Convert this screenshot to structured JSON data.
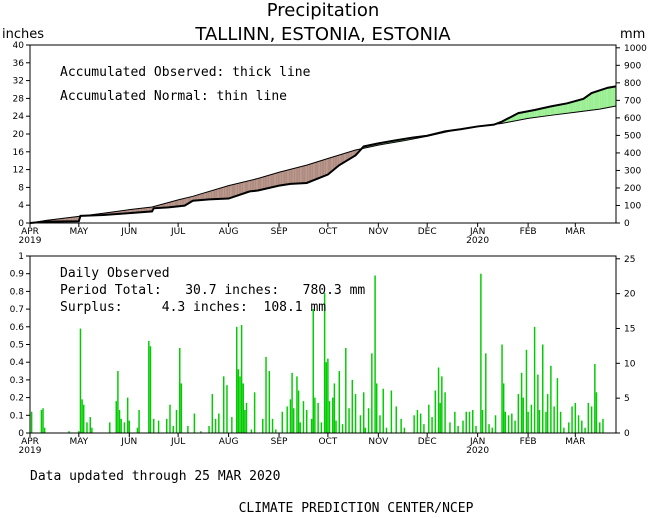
{
  "header": {
    "title": "Precipitation",
    "subtitle": "TALLINN, ESTONIA, ESTONIA",
    "left_unit": "inches",
    "right_unit": "mm"
  },
  "top_annotations": {
    "line1": "Accumulated Observed: thick line",
    "line2": "Accumulated Normal: thin line"
  },
  "bottom_annotations": {
    "line1": "Daily Observed",
    "line2": "Period Total:   30.7 inches:   780.3 mm",
    "line3": "Surplus:     4.3 inches:  108.1 mm"
  },
  "footer": {
    "updated": "Data updated through 25 MAR 2020",
    "credit": "CLIMATE PREDICTION CENTER/NCEP"
  },
  "colors": {
    "deficit_fill": "#b08c80",
    "surplus_fill": "#98ee90",
    "bar": "#00cc00",
    "line": "#000000"
  },
  "chart_data": [
    {
      "type": "area",
      "x_unit": "day since 1 APR 2019",
      "x_tick_labels": [
        {
          "day": 0,
          "label": "APR",
          "year": "2019"
        },
        {
          "day": 30,
          "label": "MAY"
        },
        {
          "day": 61,
          "label": "JUN"
        },
        {
          "day": 91,
          "label": "JUL"
        },
        {
          "day": 122,
          "label": "AUG"
        },
        {
          "day": 153,
          "label": "SEP"
        },
        {
          "day": 183,
          "label": "OCT"
        },
        {
          "day": 214,
          "label": "NOV"
        },
        {
          "day": 244,
          "label": "DEC"
        },
        {
          "day": 275,
          "label": "JAN",
          "year": "2020"
        },
        {
          "day": 306,
          "label": "FEB"
        },
        {
          "day": 335,
          "label": "MAR"
        }
      ],
      "xlim": [
        0,
        360
      ],
      "ylim": [
        0,
        40
      ],
      "y_ticks": [
        0,
        4,
        8,
        12,
        16,
        20,
        24,
        28,
        32,
        36,
        40
      ],
      "y2_ticks_mm": [
        0,
        100,
        200,
        300,
        400,
        500,
        600,
        700,
        800,
        900,
        1000
      ],
      "series": [
        {
          "name": "Accumulated Observed",
          "x": [
            0,
            10,
            30,
            31,
            45,
            60,
            75,
            76,
            85,
            95,
            100,
            110,
            122,
            135,
            140,
            153,
            160,
            170,
            183,
            190,
            200,
            205,
            214,
            225,
            235,
            244,
            255,
            265,
            275,
            285,
            290,
            300,
            310,
            320,
            330,
            340,
            345,
            355,
            360
          ],
          "y": [
            0.0,
            0.3,
            0.4,
            1.6,
            1.8,
            2.2,
            2.6,
            3.3,
            3.5,
            3.9,
            5.0,
            5.3,
            5.5,
            7.1,
            7.3,
            8.4,
            8.8,
            9.0,
            10.9,
            13.0,
            15.2,
            17.2,
            17.9,
            18.6,
            19.2,
            19.6,
            20.6,
            21.1,
            21.7,
            22.1,
            22.8,
            24.7,
            25.4,
            26.2,
            26.9,
            27.9,
            29.2,
            30.4,
            30.7
          ]
        },
        {
          "name": "Accumulated Normal",
          "x": [
            0,
            10,
            30,
            45,
            61,
            75,
            91,
            100,
            122,
            140,
            153,
            170,
            183,
            200,
            214,
            230,
            244,
            260,
            275,
            290,
            306,
            320,
            335,
            350,
            360
          ],
          "y": [
            0.0,
            0.6,
            1.5,
            2.2,
            3.0,
            3.6,
            5.2,
            6.0,
            8.4,
            10.0,
            11.4,
            13.0,
            14.5,
            16.4,
            17.5,
            18.5,
            19.5,
            20.8,
            21.7,
            22.4,
            23.5,
            24.2,
            24.9,
            25.6,
            26.3
          ]
        }
      ]
    },
    {
      "type": "bar",
      "x_unit": "day since 1 APR 2019",
      "xlim": [
        0,
        360
      ],
      "ylim": [
        0,
        1
      ],
      "y_ticks": [
        0,
        0.1,
        0.2,
        0.3,
        0.4,
        0.5,
        0.6,
        0.7,
        0.8,
        0.9,
        1
      ],
      "y2_ticks_mm": [
        0,
        5,
        10,
        15,
        20,
        25
      ],
      "daily_inches": [
        [
          1,
          0.12
        ],
        [
          7,
          0.13
        ],
        [
          8,
          0.14
        ],
        [
          9,
          0.03
        ],
        [
          24,
          0.01
        ],
        [
          30,
          0.01
        ],
        [
          31,
          0.59
        ],
        [
          32,
          0.19
        ],
        [
          33,
          0.16
        ],
        [
          35,
          0.06
        ],
        [
          37,
          0.09
        ],
        [
          38,
          0.03
        ],
        [
          49,
          0.06
        ],
        [
          53,
          0.18
        ],
        [
          54,
          0.35
        ],
        [
          55,
          0.13
        ],
        [
          56,
          0.08
        ],
        [
          58,
          0.06
        ],
        [
          60,
          0.2
        ],
        [
          61,
          0.07
        ],
        [
          66,
          0.03
        ],
        [
          67,
          0.13
        ],
        [
          73,
          0.52
        ],
        [
          74,
          0.49
        ],
        [
          76,
          0.08
        ],
        [
          79,
          0.07
        ],
        [
          84,
          0.08
        ],
        [
          86,
          0.16
        ],
        [
          88,
          0.04
        ],
        [
          90,
          0.13
        ],
        [
          92,
          0.48
        ],
        [
          93,
          0.28
        ],
        [
          97,
          0.04
        ],
        [
          101,
          0.11
        ],
        [
          105,
          0.01
        ],
        [
          110,
          0.04
        ],
        [
          112,
          0.22
        ],
        [
          114,
          0.08
        ],
        [
          116,
          0.11
        ],
        [
          119,
          0.32
        ],
        [
          121,
          0.27
        ],
        [
          124,
          0.09
        ],
        [
          127,
          0.6
        ],
        [
          128,
          0.36
        ],
        [
          129,
          0.32
        ],
        [
          130,
          0.61
        ],
        [
          131,
          0.28
        ],
        [
          132,
          0.13
        ],
        [
          133,
          0.17
        ],
        [
          136,
          0.02
        ],
        [
          138,
          0.23
        ],
        [
          143,
          0.08
        ],
        [
          145,
          0.43
        ],
        [
          147,
          0.35
        ],
        [
          149,
          0.08
        ],
        [
          151,
          0.02
        ],
        [
          155,
          0.12
        ],
        [
          158,
          0.15
        ],
        [
          160,
          0.19
        ],
        [
          161,
          0.34
        ],
        [
          162,
          0.14
        ],
        [
          164,
          0.32
        ],
        [
          165,
          0.24
        ],
        [
          166,
          0.06
        ],
        [
          168,
          0.18
        ],
        [
          170,
          0.13
        ],
        [
          173,
          0.08
        ],
        [
          174,
          0.7
        ],
        [
          175,
          0.2
        ],
        [
          177,
          0.17
        ],
        [
          179,
          0.06
        ],
        [
          181,
          0.79
        ],
        [
          182,
          0.4
        ],
        [
          183,
          0.42
        ],
        [
          184,
          0.18
        ],
        [
          186,
          0.2
        ],
        [
          187,
          0.28
        ],
        [
          188,
          0.07
        ],
        [
          190,
          0.35
        ],
        [
          192,
          0.05
        ],
        [
          194,
          0.48
        ],
        [
          196,
          0.14
        ],
        [
          198,
          0.3
        ],
        [
          200,
          0.22
        ],
        [
          203,
          0.1
        ],
        [
          205,
          0.23
        ],
        [
          206,
          0.03
        ],
        [
          208,
          0.14
        ],
        [
          210,
          0.45
        ],
        [
          212,
          0.89
        ],
        [
          213,
          0.28
        ],
        [
          215,
          0.1
        ],
        [
          217,
          0.25
        ],
        [
          219,
          0.03
        ],
        [
          222,
          0.24
        ],
        [
          225,
          0.15
        ],
        [
          228,
          0.08
        ],
        [
          230,
          0.03
        ],
        [
          236,
          0.1
        ],
        [
          238,
          0.13
        ],
        [
          240,
          0.11
        ],
        [
          242,
          0.05
        ],
        [
          245,
          0.16
        ],
        [
          247,
          0.09
        ],
        [
          249,
          0.24
        ],
        [
          251,
          0.37
        ],
        [
          252,
          0.17
        ],
        [
          253,
          0.32
        ],
        [
          255,
          0.23
        ],
        [
          258,
          0.06
        ],
        [
          261,
          0.12
        ],
        [
          263,
          0.04
        ],
        [
          266,
          0.07
        ],
        [
          268,
          0.12
        ],
        [
          270,
          0.12
        ],
        [
          272,
          0.13
        ],
        [
          274,
          0.04
        ],
        [
          277,
          0.9
        ],
        [
          278,
          0.13
        ],
        [
          280,
          0.45
        ],
        [
          282,
          0.05
        ],
        [
          284,
          0.03
        ],
        [
          286,
          0.1
        ],
        [
          290,
          0.5
        ],
        [
          291,
          0.28
        ],
        [
          292,
          0.12
        ],
        [
          294,
          0.1
        ],
        [
          296,
          0.11
        ],
        [
          298,
          0.07
        ],
        [
          300,
          0.22
        ],
        [
          302,
          0.34
        ],
        [
          303,
          0.2
        ],
        [
          305,
          0.47
        ],
        [
          306,
          0.12
        ],
        [
          308,
          0.16
        ],
        [
          310,
          0.6
        ],
        [
          312,
          0.33
        ],
        [
          313,
          0.13
        ],
        [
          315,
          0.5
        ],
        [
          317,
          0.12
        ],
        [
          318,
          0.22
        ],
        [
          320,
          0.38
        ],
        [
          322,
          0.15
        ],
        [
          324,
          0.31
        ],
        [
          326,
          0.12
        ],
        [
          328,
          0.03
        ],
        [
          331,
          0.06
        ],
        [
          333,
          0.15
        ],
        [
          335,
          0.17
        ],
        [
          337,
          0.1
        ],
        [
          339,
          0.07
        ],
        [
          341,
          0.03
        ],
        [
          343,
          0.17
        ],
        [
          345,
          0.15
        ],
        [
          347,
          0.39
        ],
        [
          348,
          0.23
        ],
        [
          350,
          0.06
        ],
        [
          352,
          0.08
        ]
      ]
    }
  ]
}
